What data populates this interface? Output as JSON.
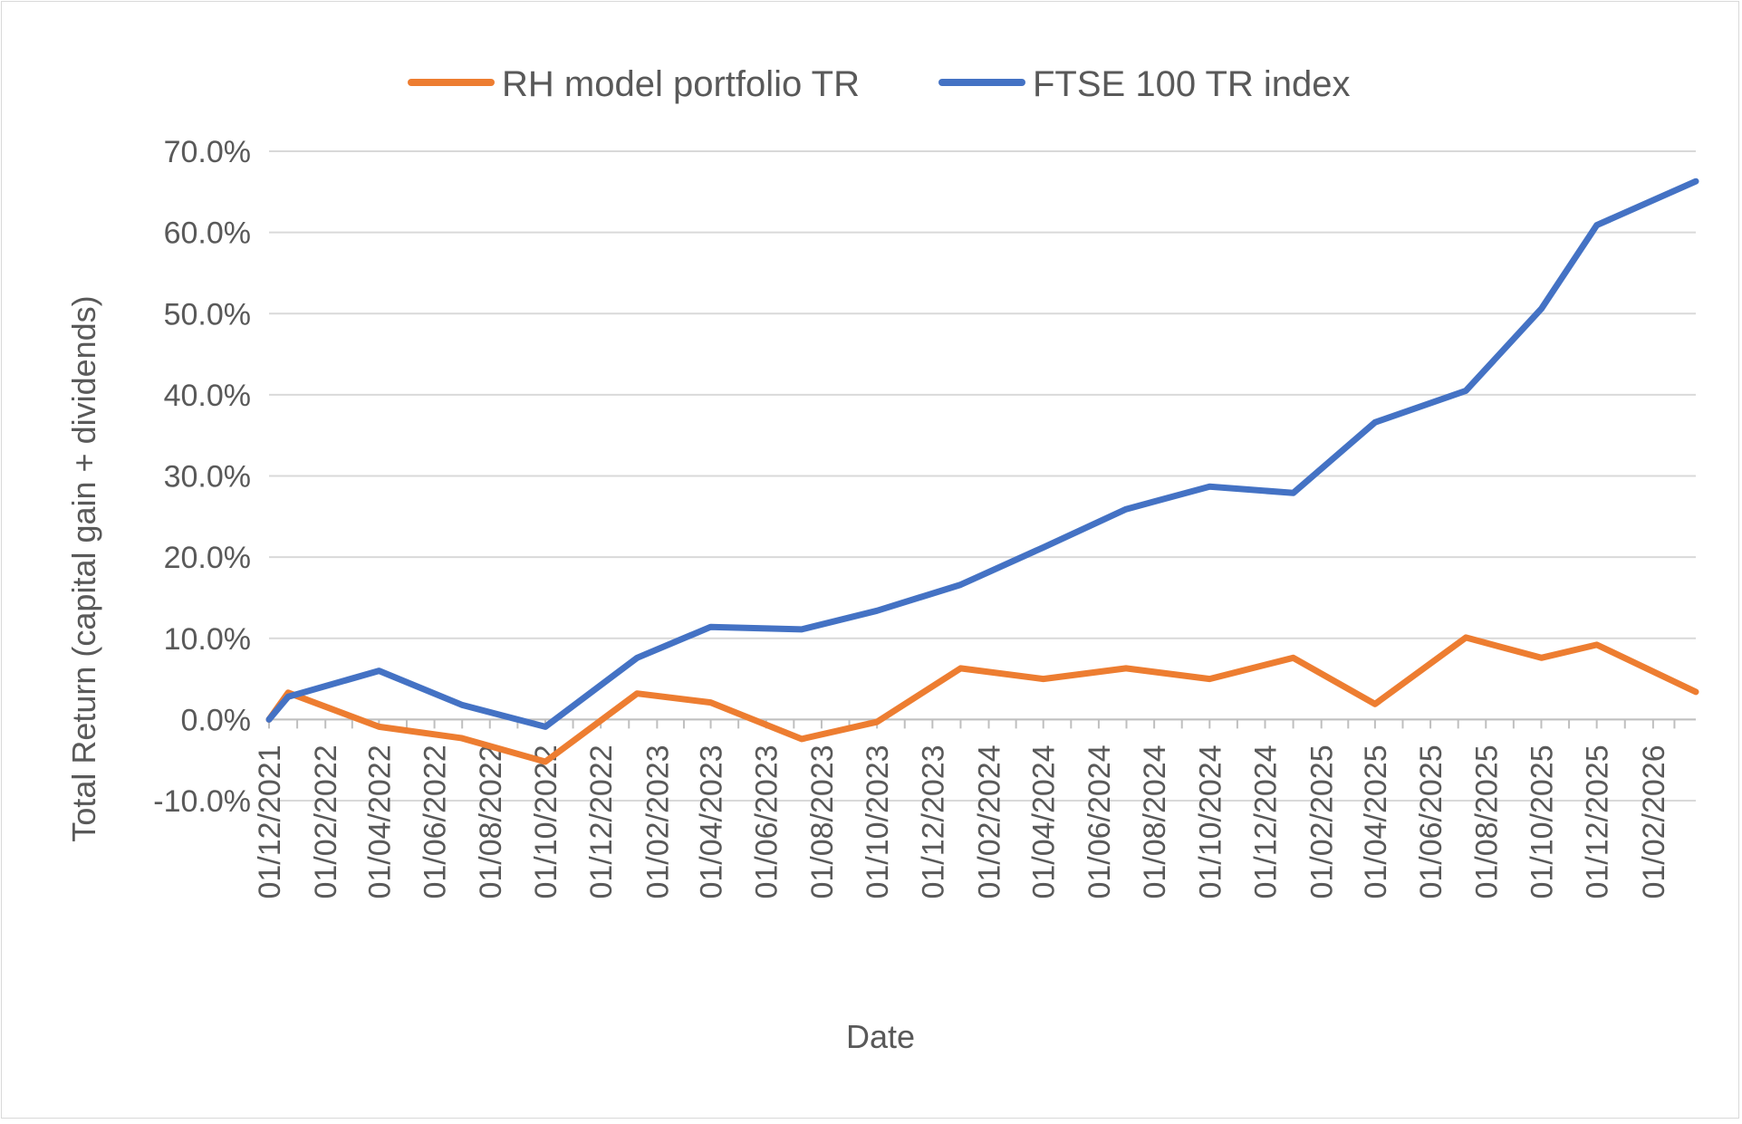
{
  "chart_data": {
    "type": "line",
    "title": "",
    "xlabel": "Date",
    "ylabel": "Total Return (capital gain + dividends)",
    "ylim": [
      -10,
      70
    ],
    "yticks": [
      -10,
      0,
      10,
      20,
      30,
      40,
      50,
      60,
      70
    ],
    "ytick_labels": [
      "-10.0%",
      "0.0%",
      "10.0%",
      "20.0%",
      "30.0%",
      "40.0%",
      "50.0%",
      "60.0%",
      "70.0%"
    ],
    "grid": true,
    "legend_position": "top",
    "x_start": "2021-12-01",
    "x_end": "2026-03-20",
    "x_tick_labels": [
      "01/12/2021",
      "01/02/2022",
      "01/04/2022",
      "01/06/2022",
      "01/08/2022",
      "01/10/2022",
      "01/12/2022",
      "01/02/2023",
      "01/04/2023",
      "01/06/2023",
      "01/08/2023",
      "01/10/2023",
      "01/12/2023",
      "01/02/2024",
      "01/04/2024",
      "01/06/2024",
      "01/08/2024",
      "01/10/2024",
      "01/12/2024",
      "01/02/2025",
      "01/04/2025",
      "01/06/2025",
      "01/08/2025",
      "01/10/2025",
      "01/12/2025",
      "01/02/2026"
    ],
    "x_tick_dates": [
      "2021-12-01",
      "2022-02-01",
      "2022-04-01",
      "2022-06-01",
      "2022-08-01",
      "2022-10-01",
      "2022-12-01",
      "2023-02-01",
      "2023-04-01",
      "2023-06-01",
      "2023-08-01",
      "2023-10-01",
      "2023-12-01",
      "2024-02-01",
      "2024-04-01",
      "2024-06-01",
      "2024-08-01",
      "2024-10-01",
      "2024-12-01",
      "2025-02-01",
      "2025-04-01",
      "2025-06-01",
      "2025-08-01",
      "2025-10-01",
      "2025-12-01",
      "2026-02-01"
    ],
    "series": [
      {
        "name": "RH model portfolio TR",
        "color": "#ed7d31",
        "points": [
          {
            "date": "2021-12-01",
            "value": 0.0
          },
          {
            "date": "2021-12-22",
            "value": 3.3
          },
          {
            "date": "2022-04-01",
            "value": -0.9
          },
          {
            "date": "2022-07-01",
            "value": -2.3
          },
          {
            "date": "2022-10-01",
            "value": -5.2
          },
          {
            "date": "2023-01-10",
            "value": 3.2
          },
          {
            "date": "2023-04-01",
            "value": 2.1
          },
          {
            "date": "2023-07-10",
            "value": -2.4
          },
          {
            "date": "2023-10-01",
            "value": -0.3
          },
          {
            "date": "2024-01-01",
            "value": 6.3
          },
          {
            "date": "2024-04-01",
            "value": 5.0
          },
          {
            "date": "2024-07-01",
            "value": 6.3
          },
          {
            "date": "2024-10-01",
            "value": 5.0
          },
          {
            "date": "2025-01-01",
            "value": 7.6
          },
          {
            "date": "2025-04-01",
            "value": 1.9
          },
          {
            "date": "2025-07-10",
            "value": 10.1
          },
          {
            "date": "2025-10-01",
            "value": 7.6
          },
          {
            "date": "2025-12-01",
            "value": 9.2
          },
          {
            "date": "2026-03-20",
            "value": 3.4
          }
        ]
      },
      {
        "name": "FTSE 100 TR index",
        "color": "#4472c4",
        "points": [
          {
            "date": "2021-12-01",
            "value": 0.0
          },
          {
            "date": "2021-12-22",
            "value": 2.8
          },
          {
            "date": "2022-04-01",
            "value": 6.0
          },
          {
            "date": "2022-07-01",
            "value": 1.8
          },
          {
            "date": "2022-10-01",
            "value": -0.9
          },
          {
            "date": "2023-01-10",
            "value": 7.6
          },
          {
            "date": "2023-04-01",
            "value": 11.4
          },
          {
            "date": "2023-07-10",
            "value": 11.1
          },
          {
            "date": "2023-10-01",
            "value": 13.4
          },
          {
            "date": "2024-01-01",
            "value": 16.6
          },
          {
            "date": "2024-04-01",
            "value": 21.2
          },
          {
            "date": "2024-07-01",
            "value": 25.9
          },
          {
            "date": "2024-10-01",
            "value": 28.7
          },
          {
            "date": "2025-01-01",
            "value": 27.9
          },
          {
            "date": "2025-04-01",
            "value": 36.6
          },
          {
            "date": "2025-07-10",
            "value": 40.5
          },
          {
            "date": "2025-10-01",
            "value": 50.6
          },
          {
            "date": "2025-12-01",
            "value": 60.9
          },
          {
            "date": "2026-03-20",
            "value": 66.3
          }
        ]
      }
    ]
  }
}
